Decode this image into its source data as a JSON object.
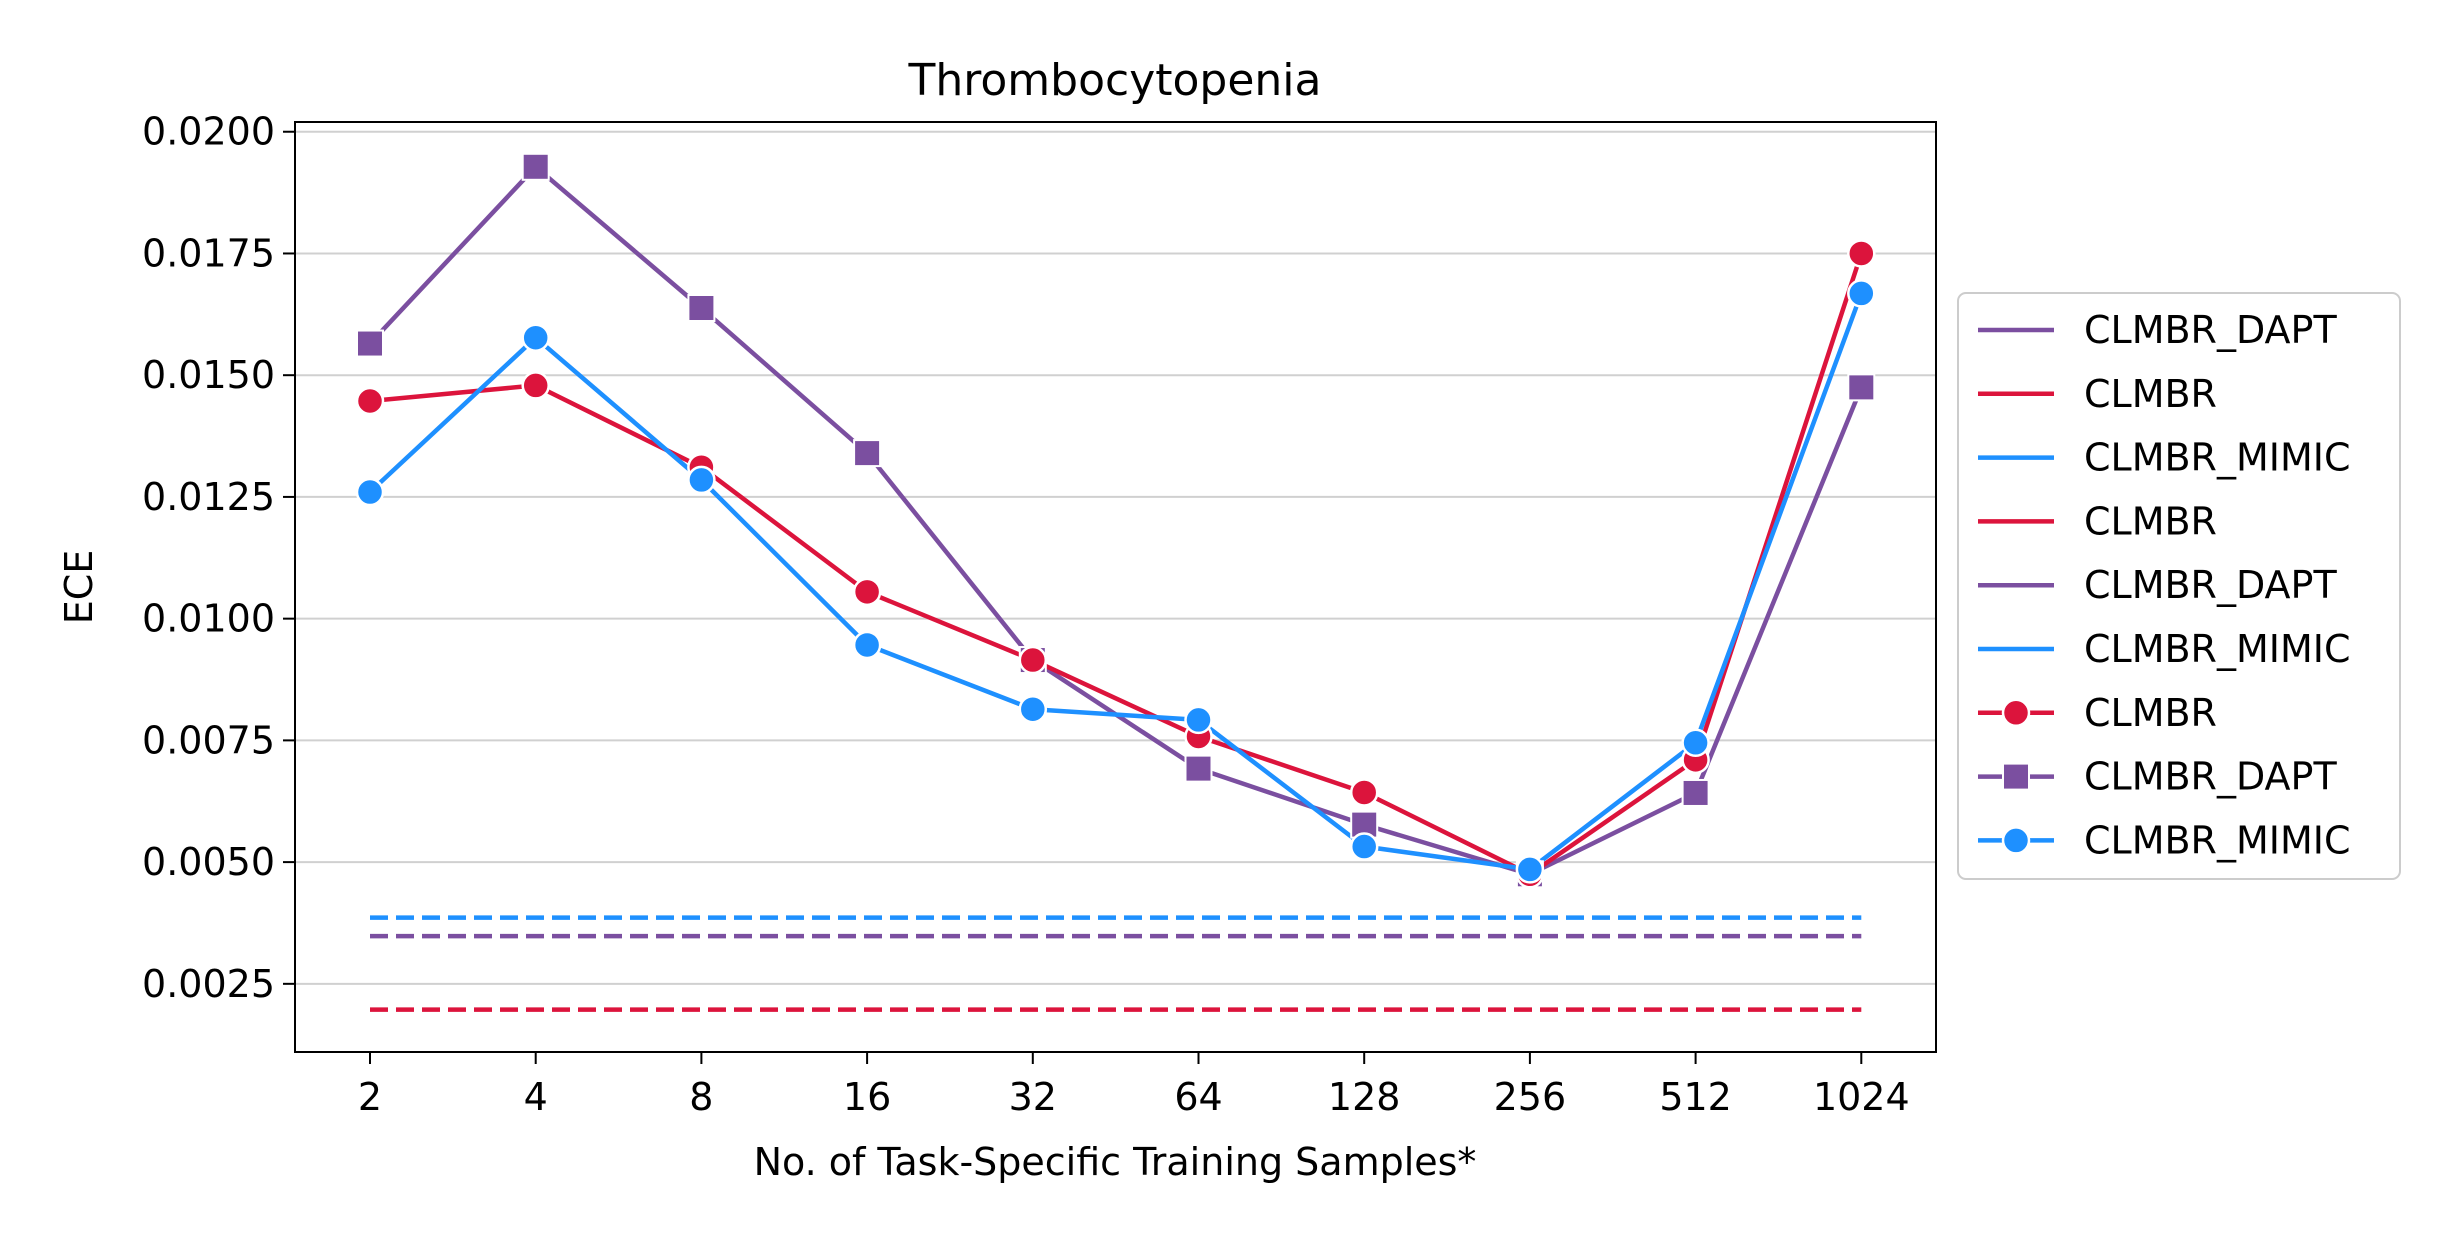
{
  "chart_data": {
    "type": "line",
    "title": "Thrombocytopenia",
    "xlabel": "No. of Task-Specific Training Samples*",
    "ylabel": "ECE",
    "categories": [
      "2",
      "4",
      "8",
      "16",
      "32",
      "64",
      "128",
      "256",
      "512",
      "1024"
    ],
    "ylim": [
      0.0011,
      0.0202
    ],
    "yticks": [
      "0.0025",
      "0.0050",
      "0.0075",
      "0.0100",
      "0.0125",
      "0.0150",
      "0.0175",
      "0.0200"
    ],
    "ytick_values": [
      0.0025,
      0.005,
      0.0075,
      0.01,
      0.0125,
      0.015,
      0.0175,
      0.02
    ],
    "grid": "horizontal",
    "legend_position": "right",
    "colors": {
      "CLMBR": "#dc143c",
      "CLMBR_DAPT": "#7b4fa0",
      "CLMBR_MIMIC": "#1e90ff"
    },
    "series": [
      {
        "name": "CLMBR",
        "color": "#dc143c",
        "marker": "circle",
        "values": [
          0.01447,
          0.01479,
          0.01311,
          0.01055,
          0.00915,
          0.00758,
          0.00643,
          0.00475,
          0.0071,
          0.0175
        ]
      },
      {
        "name": "CLMBR_DAPT",
        "color": "#7b4fa0",
        "marker": "square",
        "values": [
          0.01565,
          0.01928,
          0.01638,
          0.0134,
          0.00915,
          0.00692,
          0.00577,
          0.00475,
          0.00642,
          0.01475
        ]
      },
      {
        "name": "CLMBR_MIMIC",
        "color": "#1e90ff",
        "marker": "circle",
        "values": [
          0.0126,
          0.01577,
          0.01285,
          0.00946,
          0.00814,
          0.00792,
          0.00532,
          0.00485,
          0.00745,
          0.01668
        ]
      }
    ],
    "baselines": [
      {
        "name": "CLMBR",
        "color": "#dc143c",
        "value": 0.00197
      },
      {
        "name": "CLMBR_DAPT",
        "color": "#7b4fa0",
        "value": 0.00348
      },
      {
        "name": "CLMBR_MIMIC",
        "color": "#1e90ff",
        "value": 0.00386
      }
    ],
    "legend": [
      {
        "label": "CLMBR_DAPT",
        "color": "#7b4fa0",
        "style": "line"
      },
      {
        "label": "CLMBR",
        "color": "#dc143c",
        "style": "line"
      },
      {
        "label": "CLMBR_MIMIC",
        "color": "#1e90ff",
        "style": "line"
      },
      {
        "label": "CLMBR",
        "color": "#dc143c",
        "style": "line"
      },
      {
        "label": "CLMBR_DAPT",
        "color": "#7b4fa0",
        "style": "line"
      },
      {
        "label": "CLMBR_MIMIC",
        "color": "#1e90ff",
        "style": "line"
      },
      {
        "label": "CLMBR",
        "color": "#dc143c",
        "style": "circle"
      },
      {
        "label": "CLMBR_DAPT",
        "color": "#7b4fa0",
        "style": "square"
      },
      {
        "label": "CLMBR_MIMIC",
        "color": "#1e90ff",
        "style": "circle"
      }
    ]
  }
}
